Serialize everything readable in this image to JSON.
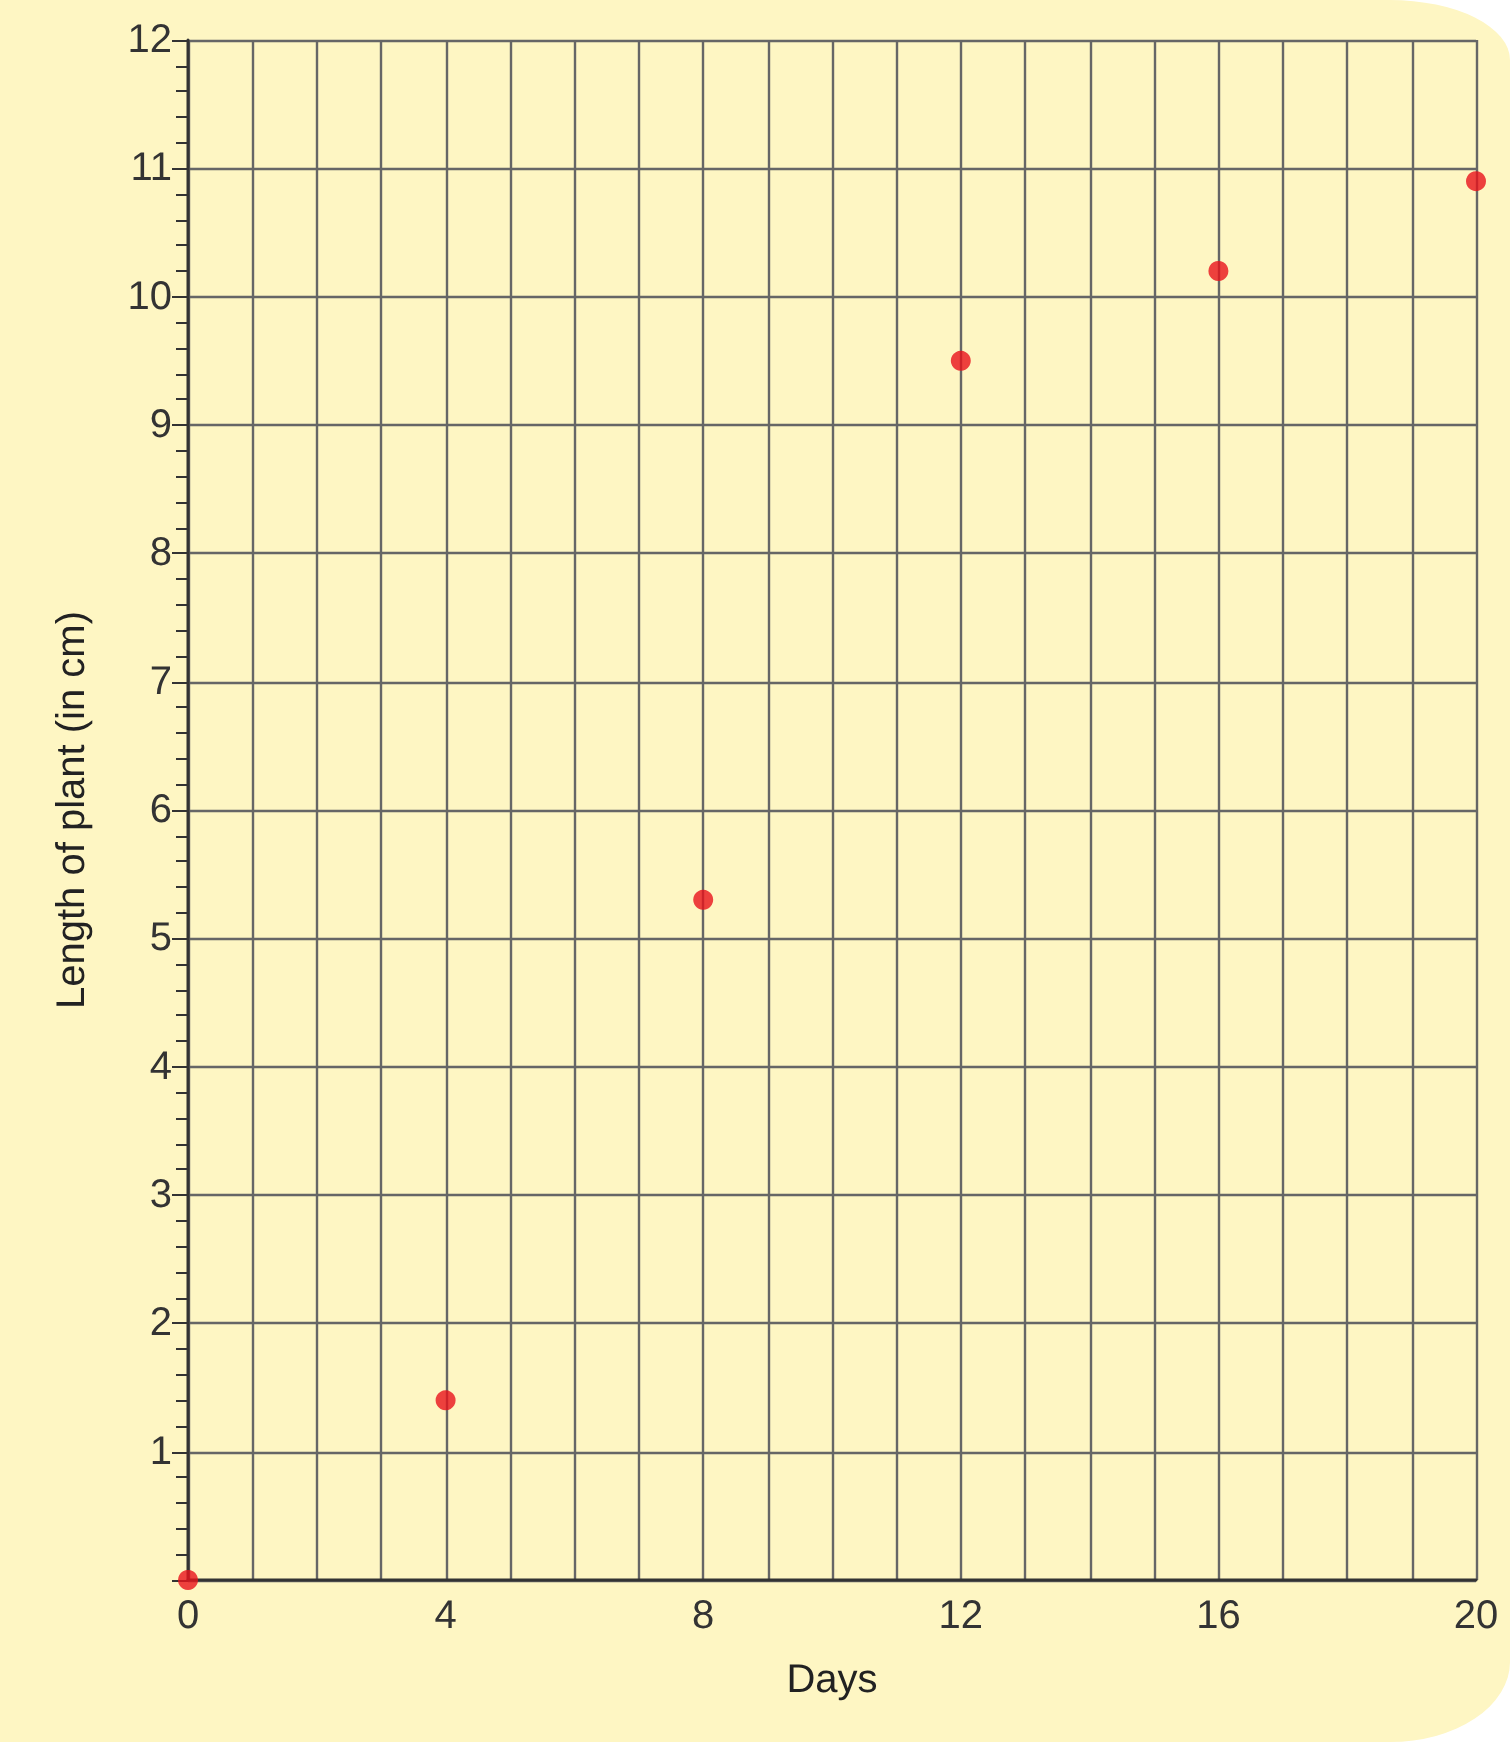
{
  "chart_data": {
    "type": "scatter",
    "xlabel": "Days",
    "ylabel": "Length of plant (in cm)",
    "x": [
      0,
      4,
      8,
      12,
      16,
      20
    ],
    "series": [
      {
        "color": "#e8131b",
        "values": [
          0,
          1.4,
          5.3,
          9.5,
          10.2,
          10.9
        ]
      }
    ],
    "xlim": [
      0,
      20
    ],
    "ylim": [
      0,
      12
    ],
    "xticks": [
      0,
      {
        "value": 1,
        "label": null
      },
      {
        "value": 2,
        "label": null
      },
      {
        "value": 3,
        "label": null
      },
      4,
      {
        "value": 5,
        "label": null
      },
      {
        "value": 6,
        "label": null
      },
      {
        "value": 7,
        "label": null
      },
      8,
      {
        "value": 9,
        "label": null
      },
      {
        "value": 10,
        "label": null
      },
      {
        "value": 11,
        "label": null
      },
      12,
      {
        "value": 13,
        "label": null
      },
      {
        "value": 14,
        "label": null
      },
      {
        "value": 15,
        "label": null
      },
      16,
      {
        "value": 17,
        "label": null
      },
      {
        "value": 18,
        "label": null
      },
      {
        "value": 19,
        "label": null
      },
      20
    ],
    "yticks": [
      {
        "value": 0,
        "label": null
      },
      1,
      2,
      3,
      4,
      5,
      6,
      7,
      8,
      9,
      10,
      11,
      12
    ],
    "grid": true,
    "marker": "circle"
  }
}
